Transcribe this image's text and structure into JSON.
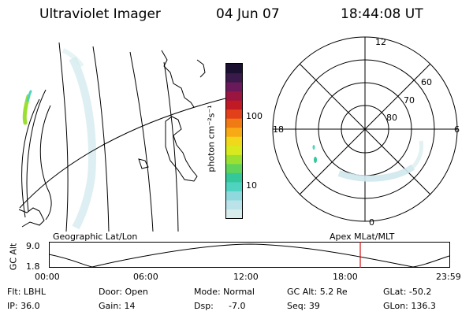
{
  "header": {
    "instrument": "Ultraviolet Imager",
    "date": "04 Jun 07",
    "time": "18:44:08 UT"
  },
  "colorbar": {
    "unit_label": "photon cm⁻²s⁻¹",
    "ticks": [
      "100",
      "10"
    ],
    "colors": [
      "#d9ecec",
      "#b9e3e8",
      "#8fd8dc",
      "#4fd3c0",
      "#33c79a",
      "#5fd35a",
      "#9be030",
      "#d8ea1e",
      "#f2d81a",
      "#f7aa16",
      "#f07a14",
      "#e2401a",
      "#c01a24",
      "#9a1640",
      "#6a1a5a",
      "#3a1a4a",
      "#1a1030"
    ]
  },
  "polar_plot": {
    "mlt_labels": [
      "12",
      "6",
      "0",
      "18"
    ],
    "lat_labels": [
      "60",
      "70",
      "80"
    ]
  },
  "map": {
    "left_label": "Geographic Lat/Lon",
    "right_label": "Apex  MLat/MLT"
  },
  "altitude_strip": {
    "axis_label": "GC Alt",
    "y_ticks": [
      "9.0",
      "1.8"
    ],
    "x_ticks": [
      "00:00",
      "06:00",
      "12:00",
      "18:00",
      "23:59"
    ],
    "marker_color": "#d01010"
  },
  "footer": {
    "filter": "Flt: LBHL",
    "ip": "IP: 36.0",
    "door": "Door: Open",
    "gain": "Gain: 14",
    "mode": "Mode: Normal",
    "dsp": "Dsp:",
    "dsp_value": "-7.0",
    "gc_alt": "GC Alt: 5.2 Re",
    "seq": "Seq: 39",
    "glat": "GLat: -50.2",
    "glon": "GLon: 136.3"
  }
}
